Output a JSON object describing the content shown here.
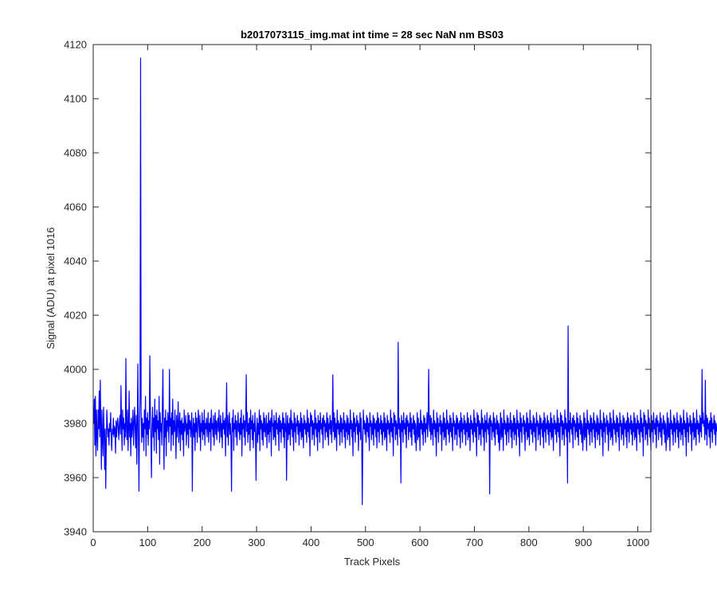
{
  "chart_data": {
    "type": "line",
    "title": "b2017073115_img.mat int time = 28 sec  NaN nm BS03",
    "xlabel": "Track Pixels",
    "ylabel": "Signal (ADU) at pixel 1016",
    "xlim": [
      0,
      1024
    ],
    "ylim": [
      3940,
      4120
    ],
    "xticks": [
      0,
      100,
      200,
      300,
      400,
      500,
      600,
      700,
      800,
      900,
      1000
    ],
    "yticks": [
      3940,
      3960,
      3980,
      4000,
      4020,
      4040,
      4060,
      4080,
      4100,
      4120
    ],
    "grid": false,
    "line_color": "#0000ff",
    "series": [
      {
        "name": "",
        "x_start": 1,
        "x_step": 1,
        "y": [
          3980,
          3989,
          3972,
          3990,
          3968,
          3985,
          3975,
          3970,
          3985,
          3978,
          3992,
          3975,
          3996,
          3980,
          3963,
          3985,
          3974,
          3968,
          3986,
          3978,
          3963,
          3978,
          3956,
          3972,
          3985,
          3980,
          3975,
          3978,
          3972,
          3980,
          3977,
          3984,
          3975,
          3970,
          3978,
          3976,
          3982,
          3975,
          3979,
          3978,
          3969,
          3981,
          3975,
          3980,
          3982,
          3978,
          3974,
          3980,
          3983,
          3976,
          3994,
          3980,
          3970,
          3985,
          3978,
          3982,
          3972,
          3980,
          3975,
          4004,
          3978,
          3974,
          3985,
          3970,
          3978,
          3992,
          3975,
          3980,
          3968,
          3982,
          3975,
          3979,
          3985,
          3972,
          3980,
          3986,
          3978,
          3971,
          3983,
          3965,
          3980,
          4002,
          3975,
          3955,
          3980,
          3990,
          4115,
          3984,
          3973,
          3982,
          3975,
          3980,
          3970,
          3985,
          3978,
          3990,
          3968,
          3982,
          3976,
          3984,
          3972,
          3981,
          3978,
          4005,
          3983,
          3974,
          3960,
          3979,
          3986,
          3975,
          3982,
          3970,
          3989,
          3977,
          3983,
          3969,
          3985,
          3978,
          3981,
          3974,
          3990,
          3965,
          3984,
          3977,
          3980,
          3972,
          3986,
          4000,
          3978,
          3963,
          3982,
          3975,
          3985,
          3968,
          3981,
          3977,
          3984,
          3980,
          3973,
          4000,
          3979,
          3982,
          3970,
          3984,
          3976,
          3989,
          3972,
          3981,
          3977,
          3985,
          3978,
          3967,
          3983,
          3975,
          3980,
          3988,
          3973,
          3979,
          3984,
          3970,
          3981,
          3976,
          3982,
          3974,
          3980,
          3968,
          3985,
          3977,
          3979,
          3983,
          3972,
          3980,
          3976,
          3984,
          3971,
          3983,
          3978,
          3981,
          3975,
          3980,
          3984,
          3955,
          3978,
          3982,
          3975,
          3980,
          3970,
          3984,
          3977,
          3982,
          3973,
          3979,
          3985,
          3980,
          3975,
          3983,
          3970,
          3980,
          3977,
          3984,
          3974,
          3981,
          3976,
          3985,
          3972,
          3980,
          3978,
          3982,
          3975,
          3979,
          3984,
          3973,
          3980,
          3977,
          3982,
          3970,
          3985,
          3978,
          3980,
          3975,
          3983,
          3972,
          3979,
          3984,
          3976,
          3981,
          3974,
          3980,
          3982,
          3977,
          3985,
          3973,
          3979,
          3983,
          3975,
          3980,
          3971,
          3984,
          3978,
          3981,
          3976,
          3982,
          3968,
          3980,
          3995,
          3975,
          3983,
          3972,
          3979,
          3984,
          3976,
          3980,
          3973,
          3955,
          3982,
          3977,
          3985,
          3970,
          3980,
          3978,
          3983,
          3975,
          3981,
          3972,
          3979,
          3984,
          3977,
          3980,
          3974,
          3982,
          3976,
          3985,
          3968,
          3980,
          3978,
          3983,
          3975,
          3981,
          3972,
          3980,
          3998,
          3977,
          3984,
          3973,
          3980,
          3976,
          3982,
          3970,
          3985,
          3978,
          3981,
          3974,
          3983,
          3971,
          3980,
          3977,
          3984,
          3975,
          3959,
          3978,
          3982,
          3973,
          3980,
          3976,
          3985,
          3970,
          3983,
          3978,
          3981,
          3974,
          3980,
          3972,
          3984,
          3977,
          3982,
          3975,
          3979,
          3983,
          3971,
          3980,
          3976,
          3984,
          3973,
          3981,
          3977,
          3982,
          3968,
          3985,
          3979,
          3980,
          3974,
          3983,
          3975,
          3981,
          3972,
          3984,
          3978,
          3980,
          3976,
          3982,
          3970,
          3983,
          3977,
          3981,
          3973,
          3980,
          3978,
          3984,
          3975,
          3982,
          3971,
          3980,
          3977,
          3984,
          3959,
          3979,
          3983,
          3974,
          3980,
          3976,
          3982,
          3972,
          3985,
          3978,
          3981,
          3975,
          3980,
          3970,
          3984,
          3977,
          3982,
          3973,
          3980,
          3979,
          3983,
          3976,
          3981,
          3972,
          3980,
          3977,
          3984,
          3974,
          3982,
          3975,
          3980,
          3971,
          3983,
          3978,
          3981,
          3976,
          3980,
          3973,
          3985,
          3977,
          3982,
          3975,
          3980,
          3968,
          3984,
          3979,
          3983,
          3974,
          3981,
          3976,
          3980,
          3972,
          3985,
          3978,
          3982,
          3975,
          3980,
          3970,
          3983,
          3977,
          3981,
          3973,
          3984,
          3978,
          3980,
          3976,
          3982,
          3971,
          3983,
          3979,
          3981,
          3974,
          3980,
          3977,
          3984,
          3975,
          3982,
          3972,
          3980,
          3978,
          3983,
          3976,
          3981,
          3973,
          3980,
          3998,
          3977,
          3984,
          3974,
          3982,
          3975,
          3980,
          3970,
          3985,
          3978,
          3981,
          3976,
          3980,
          3972,
          3983,
          3977,
          3982,
          3973,
          3980,
          3978,
          3984,
          3975,
          3981,
          3971,
          3980,
          3977,
          3983,
          3974,
          3982,
          3976,
          3980,
          3972,
          3985,
          3978,
          3981,
          3975,
          3980,
          3968,
          3984,
          3977,
          3982,
          3973,
          3980,
          3979,
          3983,
          3976,
          3981,
          3970,
          3980,
          3977,
          3984,
          3974,
          3982,
          3975,
          3950,
          3972,
          3985,
          3978,
          3981,
          3976,
          3980,
          3973,
          3983,
          3977,
          3982,
          3975,
          3980,
          3970,
          3984,
          3979,
          3981,
          3974,
          3980,
          3976,
          3983,
          3972,
          3982,
          3978,
          3980,
          3975,
          3981,
          3971,
          3984,
          3977,
          3982,
          3973,
          3980,
          3978,
          3983,
          3976,
          3981,
          3972,
          3980,
          3977,
          3984,
          3974,
          3982,
          3975,
          3980,
          3970,
          3983,
          3978,
          3981,
          3976,
          3980,
          3973,
          3985,
          3977,
          3982,
          3975,
          3980,
          3968,
          3984,
          3979,
          3983,
          3974,
          3981,
          3976,
          3980,
          3972,
          4010,
          3978,
          3982,
          3975,
          3980,
          3958,
          3983,
          3977,
          3981,
          3973,
          3984,
          3978,
          3980,
          3976,
          3982,
          3971,
          3983,
          3979,
          3981,
          3974,
          3980,
          3977,
          3984,
          3975,
          3982,
          3972,
          3980,
          3978,
          3983,
          3976,
          3981,
          3973,
          3980,
          3970,
          3977,
          3984,
          3974,
          3982,
          3975,
          3980,
          3970,
          3985,
          3978,
          3981,
          3976,
          3980,
          3972,
          3983,
          3977,
          3982,
          3973,
          3980,
          3978,
          3984,
          3975,
          3981,
          4000,
          3980,
          3977,
          3983,
          3974,
          3982,
          3976,
          3980,
          3972,
          3985,
          3978,
          3981,
          3975,
          3980,
          3968,
          3984,
          3977,
          3982,
          3973,
          3980,
          3979,
          3983,
          3976,
          3981,
          3970,
          3980,
          3977,
          3984,
          3974,
          3982,
          3975,
          3980,
          3972,
          3985,
          3978,
          3981,
          3976,
          3980,
          3973,
          3983,
          3977,
          3982,
          3975,
          3980,
          3970,
          3984,
          3979,
          3981,
          3974,
          3980,
          3976,
          3983,
          3972,
          3982,
          3978,
          3980,
          3975,
          3981,
          3971,
          3984,
          3977,
          3982,
          3973,
          3980,
          3978,
          3983,
          3976,
          3981,
          3972,
          3980,
          3977,
          3984,
          3974,
          3982,
          3975,
          3980,
          3970,
          3983,
          3978,
          3981,
          3976,
          3980,
          3973,
          3985,
          3977,
          3982,
          3975,
          3980,
          3968,
          3984,
          3979,
          3983,
          3974,
          3981,
          3976,
          3980,
          3972,
          3985,
          3978,
          3982,
          3975,
          3980,
          3970,
          3983,
          3977,
          3981,
          3973,
          3984,
          3978,
          3980,
          3976,
          3982,
          3954,
          3983,
          3979,
          3981,
          3974,
          3980,
          3977,
          3984,
          3975,
          3982,
          3972,
          3980,
          3978,
          3983,
          3976,
          3981,
          3973,
          3980,
          3970,
          3977,
          3984,
          3974,
          3982,
          3975,
          3980,
          3970,
          3985,
          3978,
          3981,
          3976,
          3980,
          3972,
          3983,
          3977,
          3982,
          3973,
          3980,
          3978,
          3984,
          3975,
          3981,
          3971,
          3980,
          3977,
          3983,
          3974,
          3982,
          3976,
          3980,
          3972,
          3985,
          3978,
          3981,
          3975,
          3980,
          3968,
          3984,
          3977,
          3982,
          3973,
          3980,
          3979,
          3983,
          3976,
          3981,
          3970,
          3980,
          3977,
          3984,
          3974,
          3982,
          3975,
          3980,
          3972,
          3985,
          3978,
          3981,
          3976,
          3980,
          3973,
          3983,
          3977,
          3982,
          3975,
          3980,
          3970,
          3984,
          3979,
          3981,
          3974,
          3980,
          3976,
          3983,
          3972,
          3982,
          3978,
          3980,
          3975,
          3981,
          3971,
          3984,
          3977,
          3982,
          3973,
          3980,
          3978,
          3983,
          3976,
          3981,
          3972,
          3980,
          3977,
          3984,
          3974,
          3982,
          3975,
          3980,
          3970,
          3983,
          3978,
          3981,
          3976,
          3980,
          3973,
          3985,
          3977,
          3982,
          3975,
          3980,
          3968,
          3984,
          3979,
          3983,
          3974,
          3981,
          3976,
          3980,
          3972,
          3985,
          3978,
          3982,
          3975,
          3980,
          3958,
          4016,
          3977,
          3981,
          3973,
          3984,
          3978,
          3980,
          3976,
          3982,
          3971,
          3983,
          3979,
          3981,
          3974,
          3980,
          3977,
          3984,
          3975,
          3982,
          3972,
          3980,
          3978,
          3983,
          3976,
          3981,
          3973,
          3980,
          3970,
          3977,
          3984,
          3974,
          3982,
          3975,
          3980,
          3970,
          3985,
          3978,
          3981,
          3976,
          3980,
          3972,
          3983,
          3977,
          3982,
          3973,
          3980,
          3978,
          3984,
          3975,
          3981,
          3971,
          3980,
          3977,
          3983,
          3974,
          3982,
          3976,
          3980,
          3972,
          3985,
          3978,
          3981,
          3975,
          3980,
          3968,
          3984,
          3977,
          3982,
          3973,
          3980,
          3979,
          3983,
          3976,
          3981,
          3970,
          3980,
          3977,
          3984,
          3974,
          3982,
          3975,
          3980,
          3972,
          3985,
          3978,
          3981,
          3976,
          3980,
          3973,
          3983,
          3977,
          3982,
          3975,
          3980,
          3970,
          3984,
          3979,
          3981,
          3974,
          3980,
          3976,
          3983,
          3972,
          3982,
          3978,
          3980,
          3975,
          3981,
          3971,
          3984,
          3977,
          3982,
          3973,
          3980,
          3978,
          3983,
          3976,
          3981,
          3972,
          3980,
          3977,
          3984,
          3974,
          3982,
          3975,
          3980,
          3970,
          3983,
          3978,
          3981,
          3976,
          3980,
          3973,
          3985,
          3977,
          3982,
          3975,
          3980,
          3968,
          3984,
          3979,
          3983,
          3974,
          3981,
          3976,
          3980,
          3972,
          3985,
          3978,
          3982,
          3975,
          3980,
          3970,
          3983,
          3977,
          3981,
          3973,
          3984,
          3978,
          3980,
          3976,
          3982,
          3971,
          3983,
          3979,
          3981,
          3974,
          3980,
          3977,
          3984,
          3975,
          3982,
          3972,
          3980,
          3978,
          3983,
          3976,
          3981,
          3973,
          3980,
          3970,
          3977,
          3984,
          3974,
          3982,
          3975,
          3980,
          3970,
          3985,
          3978,
          3981,
          3976,
          3980,
          3972,
          3983,
          3977,
          3982,
          3973,
          3980,
          3978,
          3984,
          3975,
          3981,
          3971,
          3980,
          3977,
          3983,
          3974,
          3982,
          3976,
          3980,
          3972,
          3985,
          3978,
          3981,
          3975,
          3980,
          3968,
          3984,
          3977,
          3982,
          3973,
          3980,
          3979,
          3983,
          3976,
          3981,
          3970,
          3980,
          3977,
          3984,
          3974,
          3982,
          3975,
          3980,
          3972,
          3985,
          3978,
          3981,
          3976,
          3980,
          3973,
          3983,
          3977,
          3982,
          3975,
          4000,
          3980,
          3984,
          3979,
          3981,
          3974,
          3996,
          3976,
          3983,
          3972,
          3982,
          3978,
          3980,
          3975,
          3981,
          3971,
          3984,
          3977,
          3982,
          3973,
          3980,
          3978,
          3983,
          3976,
          3981,
          3972,
          3980,
          3977
        ]
      }
    ]
  }
}
